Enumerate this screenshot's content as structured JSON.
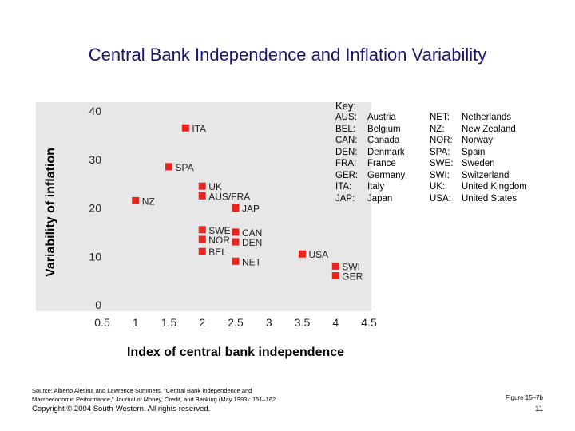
{
  "slide": {
    "title": "Central Bank Independence and Inflation Variability"
  },
  "chart_data": {
    "type": "scatter",
    "xlabel": "Index of central bank independence",
    "ylabel": "Variability of inflation",
    "xlim": [
      0.5,
      4.5
    ],
    "ylim": [
      0,
      40
    ],
    "xticks": [
      0.5,
      1,
      1.5,
      2,
      2.5,
      3,
      3.5,
      4,
      4.5
    ],
    "xtick_labels": [
      "0.5",
      "1",
      "1.5",
      "2",
      "2.5",
      "3",
      "3.5",
      "4",
      "4.5"
    ],
    "yticks": [
      0,
      10,
      20,
      30,
      40
    ],
    "ytick_labels": [
      "0",
      "10",
      "20",
      "30",
      "40"
    ],
    "marker_color": "#e8241c",
    "points": [
      {
        "label": "ITA",
        "x": 1.75,
        "y": 36.5
      },
      {
        "label": "SPA",
        "x": 1.5,
        "y": 28.5
      },
      {
        "label": "NZ",
        "x": 1.0,
        "y": 21.5
      },
      {
        "label": "UK",
        "x": 2.0,
        "y": 24.5
      },
      {
        "label": "AUS/FRA",
        "x": 2.0,
        "y": 22.5
      },
      {
        "label": "JAP",
        "x": 2.5,
        "y": 20.0
      },
      {
        "label": "SWE",
        "x": 2.0,
        "y": 15.5
      },
      {
        "label": "NOR",
        "x": 2.0,
        "y": 13.5
      },
      {
        "label": "BEL",
        "x": 2.0,
        "y": 11.0
      },
      {
        "label": "CAN",
        "x": 2.5,
        "y": 15.0
      },
      {
        "label": "DEN",
        "x": 2.5,
        "y": 13.0
      },
      {
        "label": "NET",
        "x": 2.5,
        "y": 9.0
      },
      {
        "label": "USA",
        "x": 3.5,
        "y": 10.5
      },
      {
        "label": "SWI",
        "x": 4.0,
        "y": 8.0
      },
      {
        "label": "GER",
        "x": 4.0,
        "y": 6.0
      }
    ]
  },
  "key": {
    "heading": "Key:",
    "col1": [
      {
        "code": "AUS:",
        "name": "Austria"
      },
      {
        "code": "BEL:",
        "name": "Belgium"
      },
      {
        "code": "CAN:",
        "name": "Canada"
      },
      {
        "code": "DEN:",
        "name": "Denmark"
      },
      {
        "code": "FRA:",
        "name": "France"
      },
      {
        "code": "GER:",
        "name": "Germany"
      },
      {
        "code": "ITA:",
        "name": "Italy"
      },
      {
        "code": "JAP:",
        "name": "Japan"
      }
    ],
    "col2": [
      {
        "code": "NET:",
        "name": "Netherlands"
      },
      {
        "code": "NZ:",
        "name": "New Zealand"
      },
      {
        "code": "NOR:",
        "name": "Norway"
      },
      {
        "code": "SPA:",
        "name": "Spain"
      },
      {
        "code": "SWE:",
        "name": "Sweden"
      },
      {
        "code": "SWI:",
        "name": "Switzerland"
      },
      {
        "code": "UK:",
        "name": "United Kingdom"
      },
      {
        "code": "USA:",
        "name": "United States"
      }
    ]
  },
  "footer": {
    "source_line1": "Source: Alberto Alesina and Lawrence Summers, \"Central Bank Independence and",
    "source_line2": "Macroeconomic Performance,\" Journal of Money, Credit, and Banking (May 1993): 151–162.",
    "copyright": "Copyright © 2004 South-Western. All rights reserved.",
    "figure": "Figure 15–7b",
    "page": "11"
  }
}
